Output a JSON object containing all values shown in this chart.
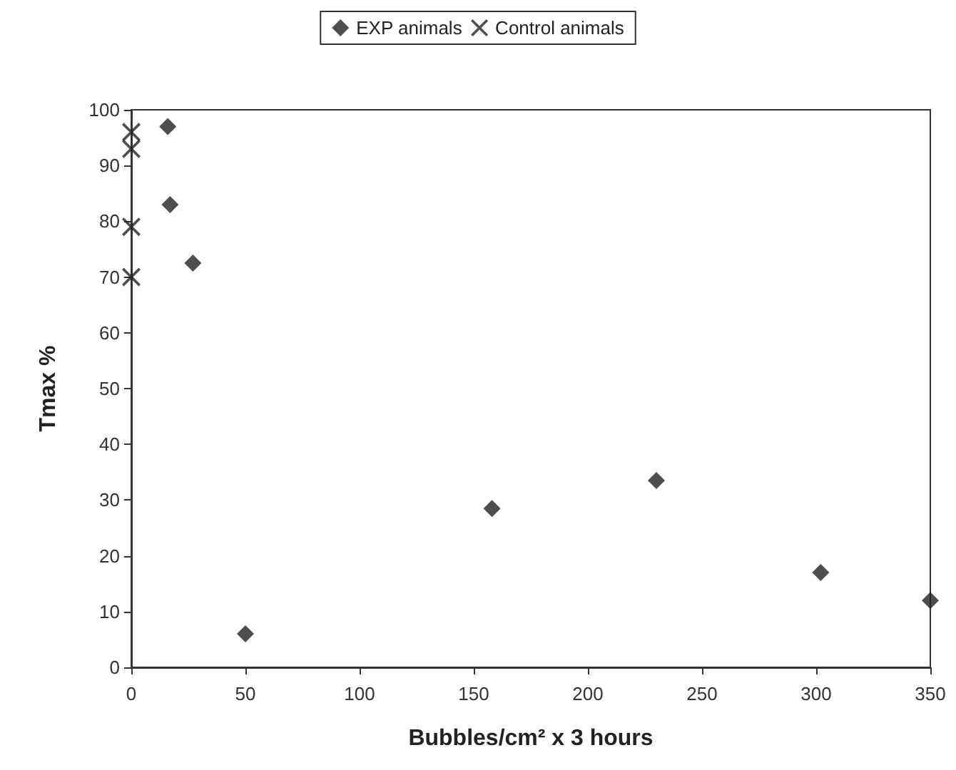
{
  "chart_data": {
    "type": "scatter",
    "xlabel": "Bubbles/cm² x 3 hours",
    "ylabel": "Tmax %",
    "xlim": [
      0,
      350
    ],
    "xticks": [
      0,
      50,
      100,
      150,
      200,
      250,
      300,
      350
    ],
    "ylim": [
      0,
      100
    ],
    "yticks": [
      0,
      10,
      20,
      30,
      40,
      50,
      60,
      70,
      80,
      90,
      100
    ],
    "grid": false,
    "legend": "top",
    "series": [
      {
        "name": "EXP animals",
        "color": "#222222",
        "marker": "diamond",
        "x": [
          16,
          17,
          27,
          50,
          158,
          230,
          302,
          350
        ],
        "values": [
          97,
          83,
          72.5,
          6,
          28.5,
          33.5,
          17,
          12
        ]
      },
      {
        "name": "Control animals",
        "color": "#222222",
        "marker": "cross",
        "x": [
          0,
          0,
          0,
          0
        ],
        "values": [
          96,
          93,
          79,
          70
        ]
      }
    ]
  }
}
